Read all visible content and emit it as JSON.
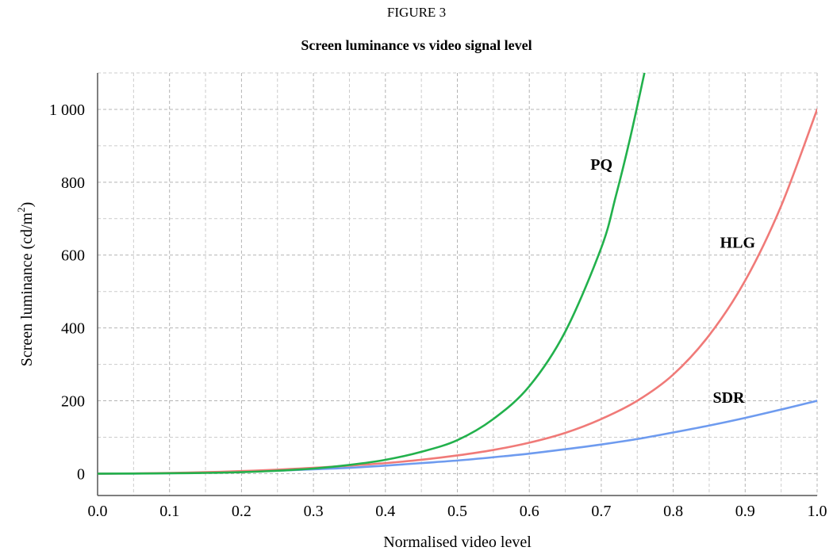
{
  "figure": {
    "label": "FIGURE 3",
    "title": "Screen luminance vs video signal level"
  },
  "chart_data": {
    "type": "line",
    "title": "Screen luminance vs video signal level",
    "xlabel": "Normalised video level",
    "ylabel_main": "Screen luminance (cd/m",
    "ylabel_sup": "2",
    "ylabel_close": ")",
    "xlim": [
      0.0,
      1.0
    ],
    "ylim": [
      -60,
      1100
    ],
    "x_ticks": [
      0.0,
      0.1,
      0.2,
      0.3,
      0.4,
      0.5,
      0.6,
      0.7,
      0.8,
      0.9,
      1.0
    ],
    "x_tick_labels": [
      "0.0",
      "0.1",
      "0.2",
      "0.3",
      "0.4",
      "0.5",
      "0.6",
      "0.7",
      "0.8",
      "0.9",
      "1.0"
    ],
    "y_ticks": [
      0,
      200,
      400,
      600,
      800,
      1000
    ],
    "y_tick_labels": [
      "0",
      "200",
      "400",
      "600",
      "800",
      "1 000"
    ],
    "grid": true,
    "minor_grid": true,
    "legend": "none",
    "series": [
      {
        "name": "PQ",
        "color": "#22b14c",
        "x": [
          0.0,
          0.05,
          0.1,
          0.15,
          0.2,
          0.25,
          0.3,
          0.35,
          0.4,
          0.45,
          0.5,
          0.55,
          0.6,
          0.65,
          0.7,
          0.72,
          0.74,
          0.76
        ],
        "y": [
          0,
          0.3,
          1,
          2,
          4,
          8,
          14,
          24,
          38,
          60,
          92,
          150,
          240,
          390,
          620,
          760,
          920,
          1100
        ]
      },
      {
        "name": "HLG",
        "color": "#f07a78",
        "x": [
          0.0,
          0.05,
          0.1,
          0.15,
          0.2,
          0.25,
          0.3,
          0.35,
          0.4,
          0.45,
          0.5,
          0.55,
          0.6,
          0.65,
          0.7,
          0.75,
          0.8,
          0.85,
          0.9,
          0.95,
          1.0
        ],
        "y": [
          0,
          0.5,
          2,
          4,
          7,
          11,
          16,
          22,
          29,
          38,
          50,
          65,
          85,
          112,
          150,
          200,
          272,
          380,
          530,
          735,
          1000
        ]
      },
      {
        "name": "SDR",
        "color": "#6e9bef",
        "x": [
          0.0,
          0.05,
          0.1,
          0.15,
          0.2,
          0.25,
          0.3,
          0.35,
          0.4,
          0.45,
          0.5,
          0.55,
          0.6,
          0.65,
          0.7,
          0.75,
          0.8,
          0.85,
          0.9,
          0.95,
          1.0
        ],
        "y": [
          0,
          0.3,
          1.2,
          2.8,
          5,
          8,
          12,
          16,
          22,
          29,
          36,
          45,
          55,
          67,
          80,
          95,
          113,
          132,
          153,
          176,
          200
        ]
      }
    ],
    "annotations": [
      {
        "text": "PQ",
        "x": 0.685,
        "y": 835
      },
      {
        "text": "HLG",
        "x": 0.865,
        "y": 620
      },
      {
        "text": "SDR",
        "x": 0.855,
        "y": 195
      }
    ]
  }
}
